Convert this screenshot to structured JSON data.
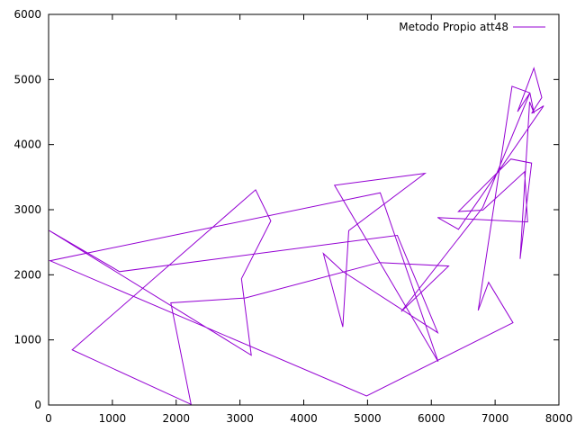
{
  "chart_data": {
    "type": "line",
    "title": "",
    "xlabel": "",
    "ylabel": "",
    "xlim": [
      0,
      8000
    ],
    "ylim": [
      0,
      6000
    ],
    "xticks": [
      0,
      1000,
      2000,
      3000,
      4000,
      5000,
      6000,
      7000,
      8000
    ],
    "yticks": [
      0,
      1000,
      2000,
      3000,
      4000,
      5000,
      6000
    ],
    "grid": false,
    "legend_position": "top-right",
    "series": [
      {
        "name": "Metodo Propio att48",
        "color": "#9400d3",
        "x": [
          6734,
          7265,
          7545,
          7611,
          7541,
          7392,
          7573,
          7248,
          6426,
          6807,
          7462,
          7509,
          6098,
          6426,
          7762,
          7573,
          7732,
          7608,
          7352,
          7545,
          6807,
          5529,
          6271,
          5185,
          3082,
          1916,
          2233,
          369,
          3245,
          3484,
          3023,
          3177,
          10,
          1112,
          5468,
          6101,
          4608,
          4307,
          4612,
          4706,
          5900,
          4483,
          6107,
          5199,
          23,
          4985,
          7280,
          6898,
          6734
        ],
        "y": [
          1453,
          4895,
          4795,
          4481,
          4656,
          2244,
          3716,
          3779,
          2973,
          2993,
          3583,
          2812,
          2880,
          2698,
          4595,
          4481,
          4722,
          5175,
          4506,
          4795,
          3034,
          1437,
          2135,
          2188,
          1644,
          1569,
          10,
          848,
          3305,
          2827,
          1940,
          764,
          2679,
          2049,
          2606,
          1110,
          2055,
          2327,
          1200,
          2679,
          3558,
          3375,
          668,
          3260,
          2216,
          140,
          1264,
          1885,
          1453
        ]
      }
    ]
  }
}
